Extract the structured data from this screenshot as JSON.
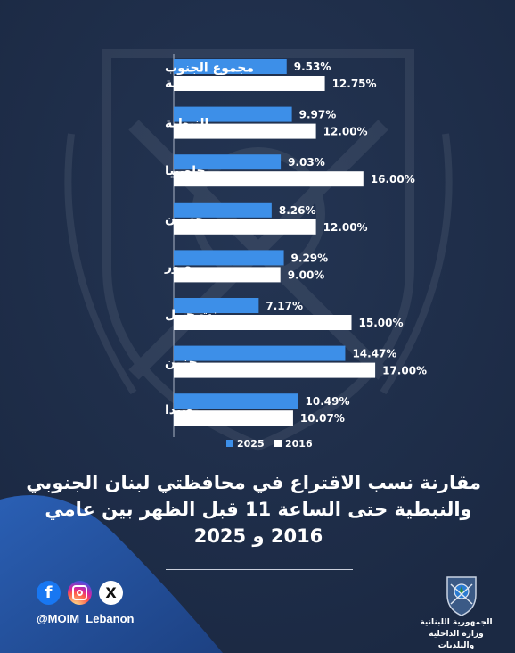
{
  "chart_data": {
    "type": "bar",
    "orientation": "horizontal",
    "categories": [
      "مجموع الجنوب والنبطية",
      "النبطية",
      "حاصبيا",
      "مرجعيون",
      "صور",
      "بنت جبيل",
      "جزين",
      "صيدا"
    ],
    "category_lines": [
      [
        "مجموع الجنوب",
        "والنبطية"
      ],
      [
        "النبطية"
      ],
      [
        "حاصبيا"
      ],
      [
        "مرجعيون"
      ],
      [
        "صور"
      ],
      [
        "بنت جبيل"
      ],
      [
        "جزين"
      ],
      [
        "صيدا"
      ]
    ],
    "series": [
      {
        "name": "2025",
        "color": "#3d8fe8",
        "values": [
          9.53,
          9.97,
          9.03,
          8.26,
          9.29,
          7.17,
          14.47,
          10.49
        ],
        "labels": [
          "9.53%",
          "9.97%",
          "9.03%",
          "8.26%",
          "9.29%",
          "7.17%",
          "14.47%",
          "10.49%"
        ]
      },
      {
        "name": "2016",
        "color": "#ffffff",
        "values": [
          12.75,
          12.0,
          16.0,
          12.0,
          9.0,
          15.0,
          17.0,
          10.07
        ],
        "labels": [
          "12.75%",
          "12.00%",
          "16.00%",
          "12.00%",
          "9.00%",
          "15.00%",
          "17.00%",
          "10.07%"
        ]
      }
    ],
    "xlim": [
      0,
      30
    ],
    "legend_position": "bottom",
    "legend_order": [
      "2025",
      "2016"
    ],
    "grid": false
  },
  "title": {
    "lines": [
      "مقارنة نسب الاقتراع في محافظتي لبنان الجنوبي",
      "والنبطية حتى الساعة 11 قبل الظهر بين عامي",
      "2016 و 2025"
    ]
  },
  "footer": {
    "handle": "@MOIM_Lebanon",
    "ministry_lines": [
      "الجمهورية اللبنانية",
      "وزارة الداخلية والبلديات"
    ],
    "socials": [
      {
        "icon": "facebook-icon",
        "glyph": "f"
      },
      {
        "icon": "instagram-icon",
        "glyph": ""
      },
      {
        "icon": "x-icon",
        "glyph": "X"
      }
    ]
  },
  "colors": {
    "background": "#1d2c47",
    "wave": "#254e96",
    "accent_blue": "#3d8fe8"
  }
}
